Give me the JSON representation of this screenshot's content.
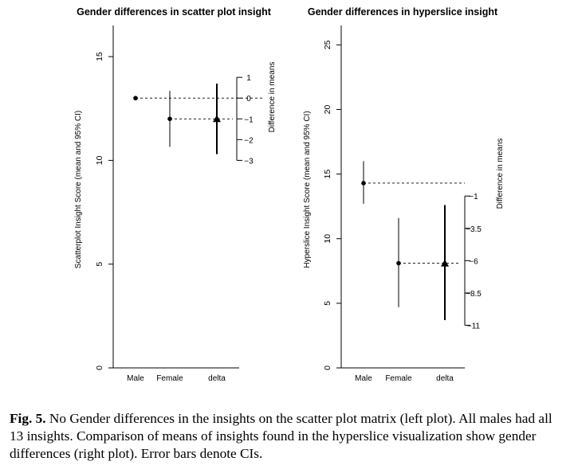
{
  "chart_data": [
    {
      "type": "scatter",
      "title": "Gender differences in scatter plot insight",
      "ylabel": "Scatterplot Insight Score (mean and 95% CI)",
      "ylim": [
        0,
        16.5
      ],
      "yticks": [
        0,
        5,
        10,
        15
      ],
      "categories": [
        "Male",
        "Female",
        "delta"
      ],
      "points": [
        {
          "category": "Male",
          "mean": 13,
          "ci_low": 13,
          "ci_high": 13,
          "marker": "circle"
        },
        {
          "category": "Female",
          "mean": 12,
          "ci_low": 10.65,
          "ci_high": 13.35,
          "marker": "circle"
        },
        {
          "category": "delta",
          "mean": 12,
          "ci_low": 10.3,
          "ci_high": 13.7,
          "marker": "triangle"
        }
      ],
      "secondary_axis": {
        "label": "Difference in means",
        "offset": 13,
        "ticks": [
          1,
          0,
          -1,
          -2,
          -3
        ],
        "tick_labels": [
          "1",
          "0",
          "−1",
          "−2",
          "−3"
        ]
      },
      "grid": false
    },
    {
      "type": "scatter",
      "title": "Gender differences in hyperslice insight",
      "ylabel": "Hyperslice Insight Score (mean and 95% CI)",
      "ylim": [
        0,
        26.5
      ],
      "yticks": [
        0,
        5,
        10,
        15,
        20,
        25
      ],
      "categories": [
        "Male",
        "Female",
        "delta"
      ],
      "points": [
        {
          "category": "Male",
          "mean": 14.3,
          "ci_low": 12.7,
          "ci_high": 16.0,
          "marker": "circle"
        },
        {
          "category": "Female",
          "mean": 8.1,
          "ci_low": 4.7,
          "ci_high": 11.6,
          "marker": "circle"
        },
        {
          "category": "delta",
          "mean": 8.1,
          "ci_low": 3.7,
          "ci_high": 12.6,
          "marker": "triangle"
        }
      ],
      "secondary_axis": {
        "label": "Difference in means",
        "offset": 14.3,
        "ticks": [
          -1,
          -3.5,
          -6,
          -8.5,
          -11
        ],
        "tick_labels": [
          "−1",
          "−3.5",
          "−6",
          "−8.5",
          "−11"
        ]
      },
      "grid": false
    }
  ],
  "caption": {
    "label": "Fig. 5.",
    "text": " No Gender differences in the insights on the scatter plot matrix (left plot). All males had all 13 insights. Comparison of means of insights found in the hyperslice visualization show gender differences (right plot). Error bars denote CIs."
  }
}
